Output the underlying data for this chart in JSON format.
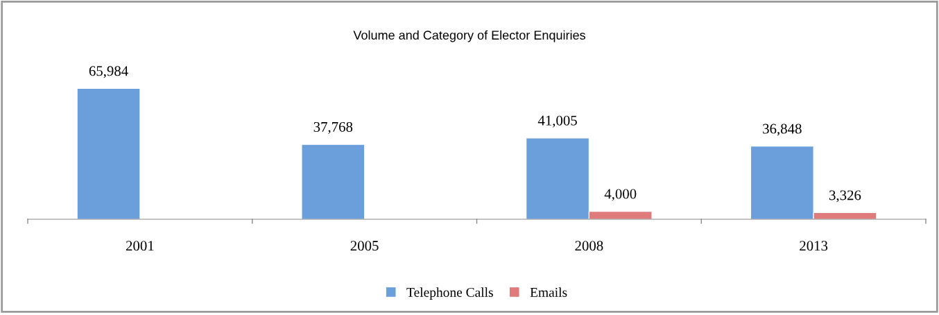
{
  "chart_data": {
    "type": "bar",
    "title": "Volume and Category of Elector Enquiries",
    "categories": [
      "2001",
      "2005",
      "2008",
      "2013"
    ],
    "series": [
      {
        "name": "Telephone Calls",
        "color": "#6a9fdc",
        "values": [
          65984,
          37768,
          41005,
          36848
        ],
        "value_labels": [
          "65,984",
          "37,768",
          "41,005",
          "36,848"
        ]
      },
      {
        "name": "Emails",
        "color": "#e07b7b",
        "values": [
          null,
          null,
          4000,
          3326
        ],
        "value_labels": [
          null,
          null,
          "4,000",
          "3,326"
        ]
      }
    ],
    "tick_labels": "x",
    "legend": "bottom",
    "grid": false
  }
}
